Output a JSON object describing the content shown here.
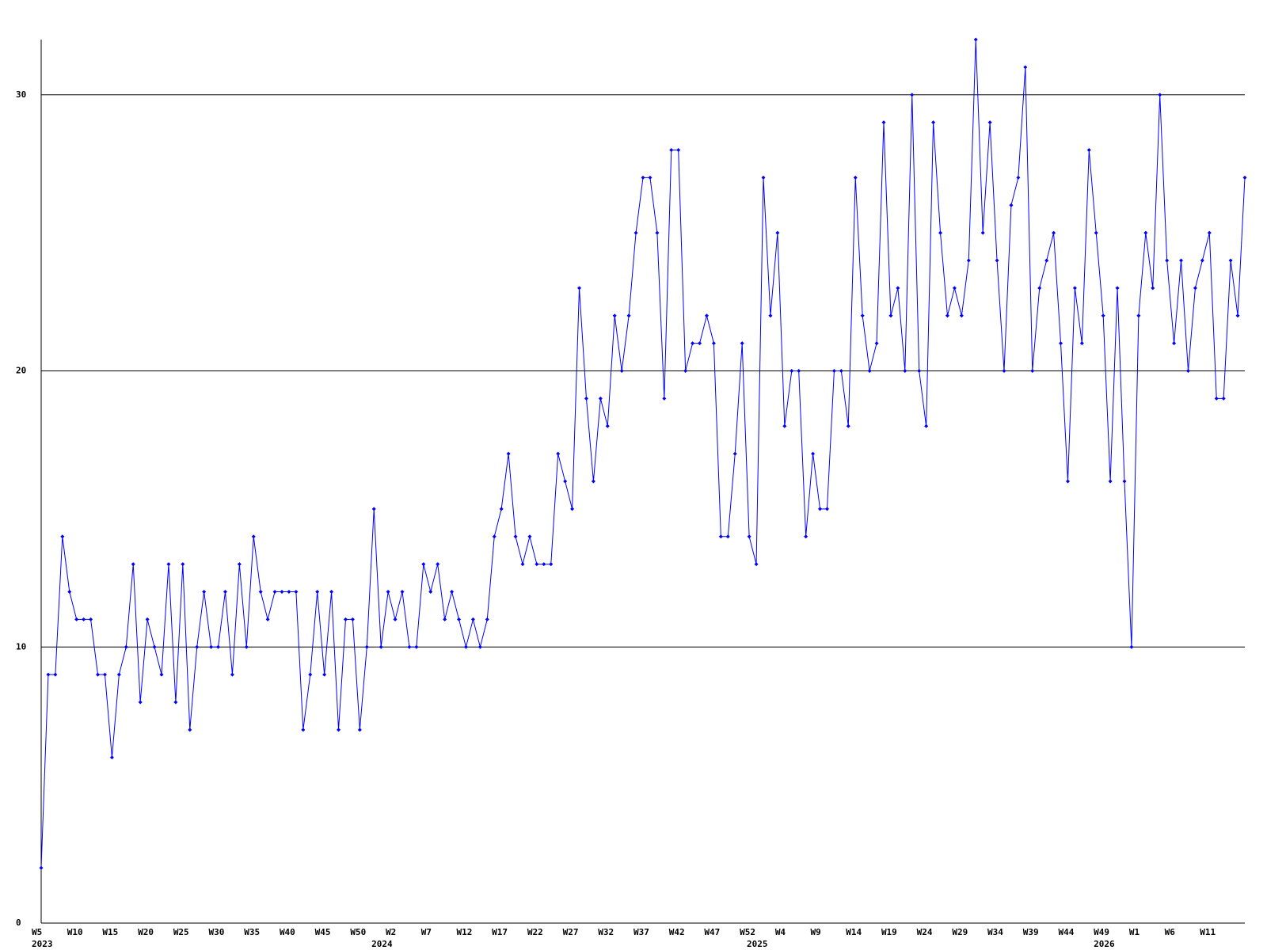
{
  "chart_data": {
    "type": "line",
    "ylim": [
      0,
      32
    ],
    "yticks": [
      0,
      10,
      20,
      30
    ],
    "grid": true,
    "categories": [
      "W5",
      null,
      null,
      null,
      null,
      "W10",
      null,
      null,
      null,
      null,
      "W15",
      null,
      null,
      null,
      null,
      "W20",
      null,
      null,
      null,
      null,
      "W25",
      null,
      null,
      null,
      null,
      "W30",
      null,
      null,
      null,
      null,
      "W35",
      null,
      null,
      null,
      null,
      "W40",
      null,
      null,
      null,
      null,
      "W45",
      null,
      null,
      null,
      null,
      "W50",
      null,
      null,
      null,
      null,
      "W2",
      null,
      null,
      null,
      null,
      "W7",
      null,
      null,
      null,
      null,
      "W12",
      null,
      null,
      null,
      null,
      "W17",
      null,
      null,
      null,
      null,
      "W22",
      null,
      null,
      null,
      null,
      "W27",
      null,
      null,
      null,
      null,
      "W32",
      null,
      null,
      null,
      null,
      "W37",
      null,
      null,
      null,
      null,
      "W42",
      null,
      null,
      null,
      null,
      "W47",
      null,
      null,
      null,
      null,
      "W52",
      null,
      null,
      null,
      null,
      "W4",
      null,
      null,
      null,
      null,
      "W9",
      null,
      null,
      null,
      null,
      "W14",
      null,
      null,
      null,
      null,
      "W19",
      null,
      null,
      null,
      null,
      "W24",
      null,
      null,
      null,
      null,
      "W29",
      null,
      null,
      null,
      null,
      "W34",
      null,
      null,
      null,
      null,
      "W39",
      null,
      null,
      null,
      null,
      "W44",
      null,
      null,
      null,
      null,
      "W49",
      null,
      null,
      null,
      null,
      "W1",
      null,
      null,
      null,
      null,
      "W6",
      null,
      null,
      null,
      null,
      "W11",
      null,
      null,
      null,
      null,
      null
    ],
    "x_years": [
      "2023",
      null,
      null,
      null,
      null,
      null,
      null,
      null,
      null,
      null,
      null,
      null,
      null,
      null,
      null,
      null,
      null,
      null,
      null,
      null,
      null,
      null,
      null,
      null,
      null,
      null,
      null,
      null,
      null,
      null,
      null,
      null,
      null,
      null,
      null,
      null,
      null,
      null,
      null,
      null,
      null,
      null,
      null,
      null,
      null,
      null,
      null,
      null,
      "2024",
      null,
      null,
      null,
      null,
      null,
      null,
      null,
      null,
      null,
      null,
      null,
      null,
      null,
      null,
      null,
      null,
      null,
      null,
      null,
      null,
      null,
      null,
      null,
      null,
      null,
      null,
      null,
      null,
      null,
      null,
      null,
      null,
      null,
      null,
      null,
      null,
      null,
      null,
      null,
      null,
      null,
      null,
      null,
      null,
      null,
      null,
      null,
      null,
      null,
      null,
      null,
      null,
      "2025",
      null,
      null,
      null,
      null,
      null,
      null,
      null,
      null,
      null,
      null,
      null,
      null,
      null,
      null,
      null,
      null,
      null,
      null,
      null,
      null,
      null,
      null,
      null,
      null,
      null,
      null,
      null,
      null,
      null,
      null,
      null,
      null,
      null,
      null,
      null,
      null,
      null,
      null,
      null,
      null,
      null,
      null,
      null,
      null,
      null,
      null,
      null,
      null,
      "2026",
      null,
      null,
      null,
      null,
      null,
      null,
      null,
      null,
      null,
      null,
      null,
      null,
      null,
      null,
      null,
      null
    ],
    "series": [
      {
        "color": "#0000ff",
        "values": [
          2,
          9,
          9,
          14,
          12,
          11,
          11,
          11,
          9,
          9,
          6,
          9,
          10,
          13,
          8,
          11,
          10,
          9,
          13,
          8,
          13,
          7,
          10,
          12,
          10,
          10,
          12,
          9,
          13,
          10,
          14,
          12,
          11,
          12,
          12,
          12,
          12,
          7,
          9,
          12,
          9,
          12,
          7,
          11,
          11,
          7,
          10,
          15,
          10,
          12,
          11,
          12,
          10,
          10,
          13,
          12,
          13,
          11,
          12,
          11,
          10,
          11,
          10,
          11,
          14,
          15,
          17,
          14,
          13,
          14,
          13,
          13,
          13,
          17,
          16,
          15,
          23,
          19,
          16,
          19,
          18,
          22,
          20,
          22,
          25,
          27,
          27,
          25,
          19,
          28,
          28,
          20,
          21,
          21,
          22,
          21,
          14,
          14,
          17,
          21,
          14,
          13,
          27,
          22,
          25,
          18,
          20,
          20,
          14,
          17,
          15,
          15,
          20,
          20,
          18,
          27,
          22,
          20,
          21,
          29,
          22,
          23,
          20,
          30,
          20,
          18,
          29,
          25,
          22,
          23,
          22,
          24,
          32,
          25,
          29,
          24,
          20,
          26,
          27,
          31,
          20,
          23,
          24,
          25,
          21,
          16,
          23,
          21,
          28,
          25,
          22,
          16,
          23,
          16,
          10,
          22,
          25,
          23,
          30,
          24,
          21,
          24,
          20,
          23,
          24,
          25,
          19,
          19,
          24,
          22,
          27
        ]
      }
    ]
  }
}
